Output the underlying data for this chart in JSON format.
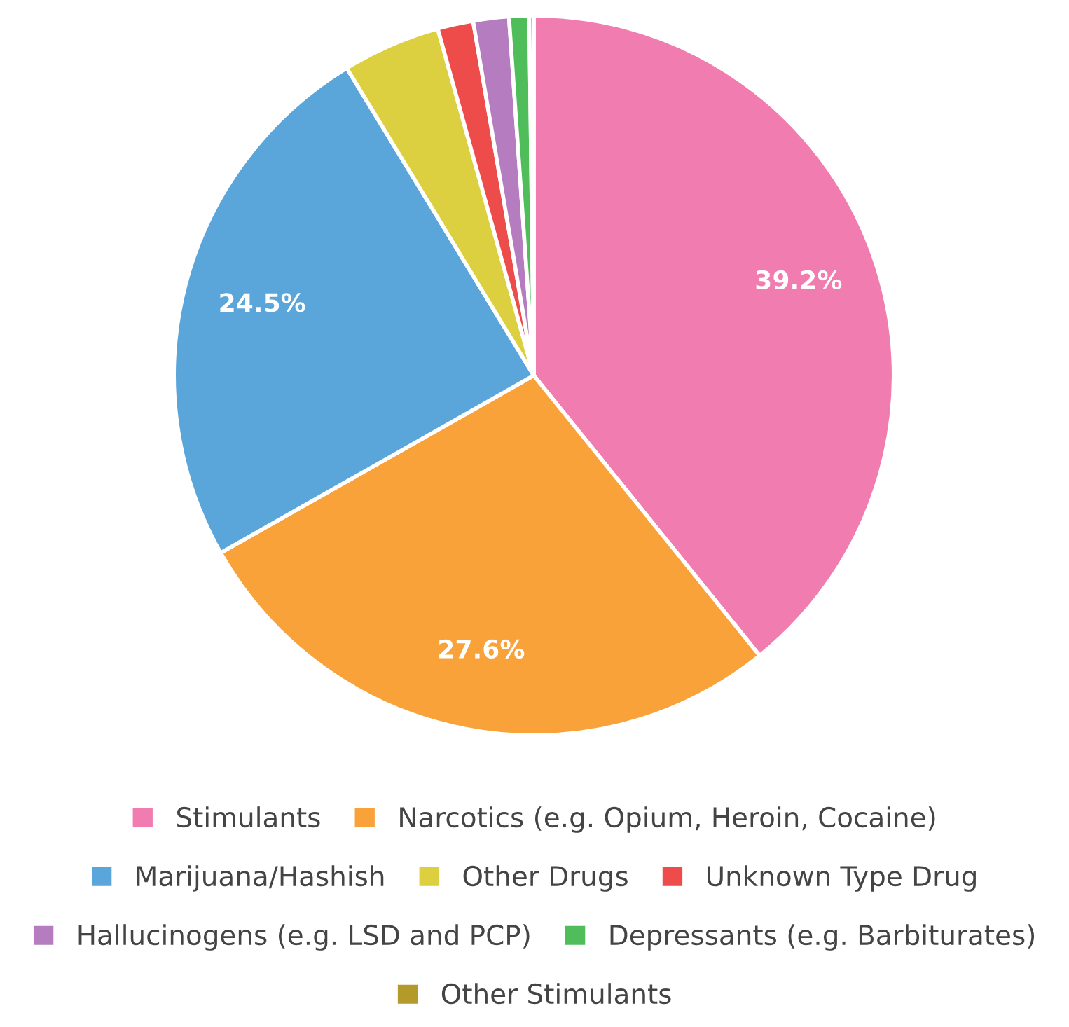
{
  "chart_data": {
    "type": "pie",
    "categories": [
      "Stimulants",
      "Narcotics (e.g. Opium, Heroin, Cocaine)",
      "Marijuana/Hashish",
      "Other Drugs",
      "Unknown Type Drug",
      "Hallucinogens (e.g. LSD and PCP)",
      "Depressants (e.g. Barbiturates)",
      "Other Stimulants"
    ],
    "values": [
      39.2,
      27.6,
      24.5,
      4.4,
      1.6,
      1.6,
      0.9,
      0.2
    ],
    "colors": [
      "#f07cb0",
      "#f9a23a",
      "#5aa5da",
      "#dcd040",
      "#ee4b4b",
      "#b57cc0",
      "#4fbe5a",
      "#b39a2a"
    ],
    "value_labels": [
      "39.2%",
      "27.6%",
      "24.5%",
      null,
      null,
      null,
      null,
      null
    ],
    "legend": "bottom"
  }
}
